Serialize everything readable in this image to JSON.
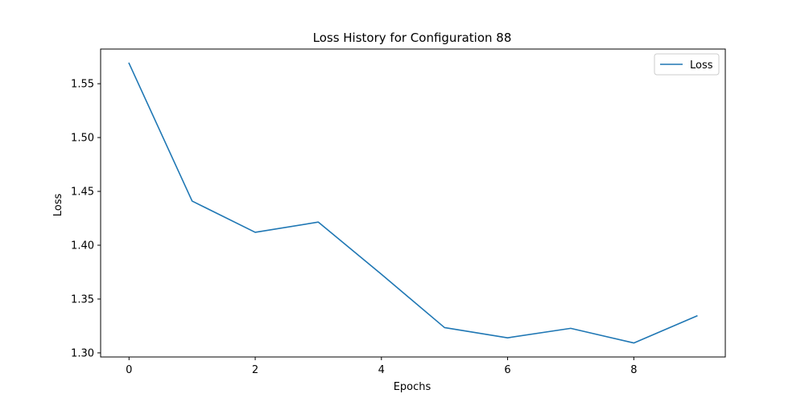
{
  "chart_data": {
    "type": "line",
    "title": "Loss History for Configuration 88",
    "xlabel": "Epochs",
    "ylabel": "Loss",
    "x": [
      0,
      1,
      2,
      3,
      4,
      5,
      6,
      7,
      8,
      9
    ],
    "series": [
      {
        "name": "Loss",
        "color": "#1f77b4",
        "values": [
          1.569,
          1.441,
          1.412,
          1.4215,
          1.373,
          1.3235,
          1.314,
          1.3228,
          1.3092,
          1.3343
        ]
      }
    ],
    "xlim": [
      -0.45,
      9.45
    ],
    "ylim": [
      1.2962,
      1.5822
    ],
    "xticks": [
      0,
      2,
      4,
      6,
      8
    ],
    "xtick_labels": [
      "0",
      "2",
      "4",
      "6",
      "8"
    ],
    "yticks": [
      1.3,
      1.35,
      1.4,
      1.45,
      1.5,
      1.55
    ],
    "ytick_labels": [
      "1.30",
      "1.35",
      "1.40",
      "1.45",
      "1.50",
      "1.55"
    ],
    "grid": false,
    "legend_position": "top-right"
  }
}
